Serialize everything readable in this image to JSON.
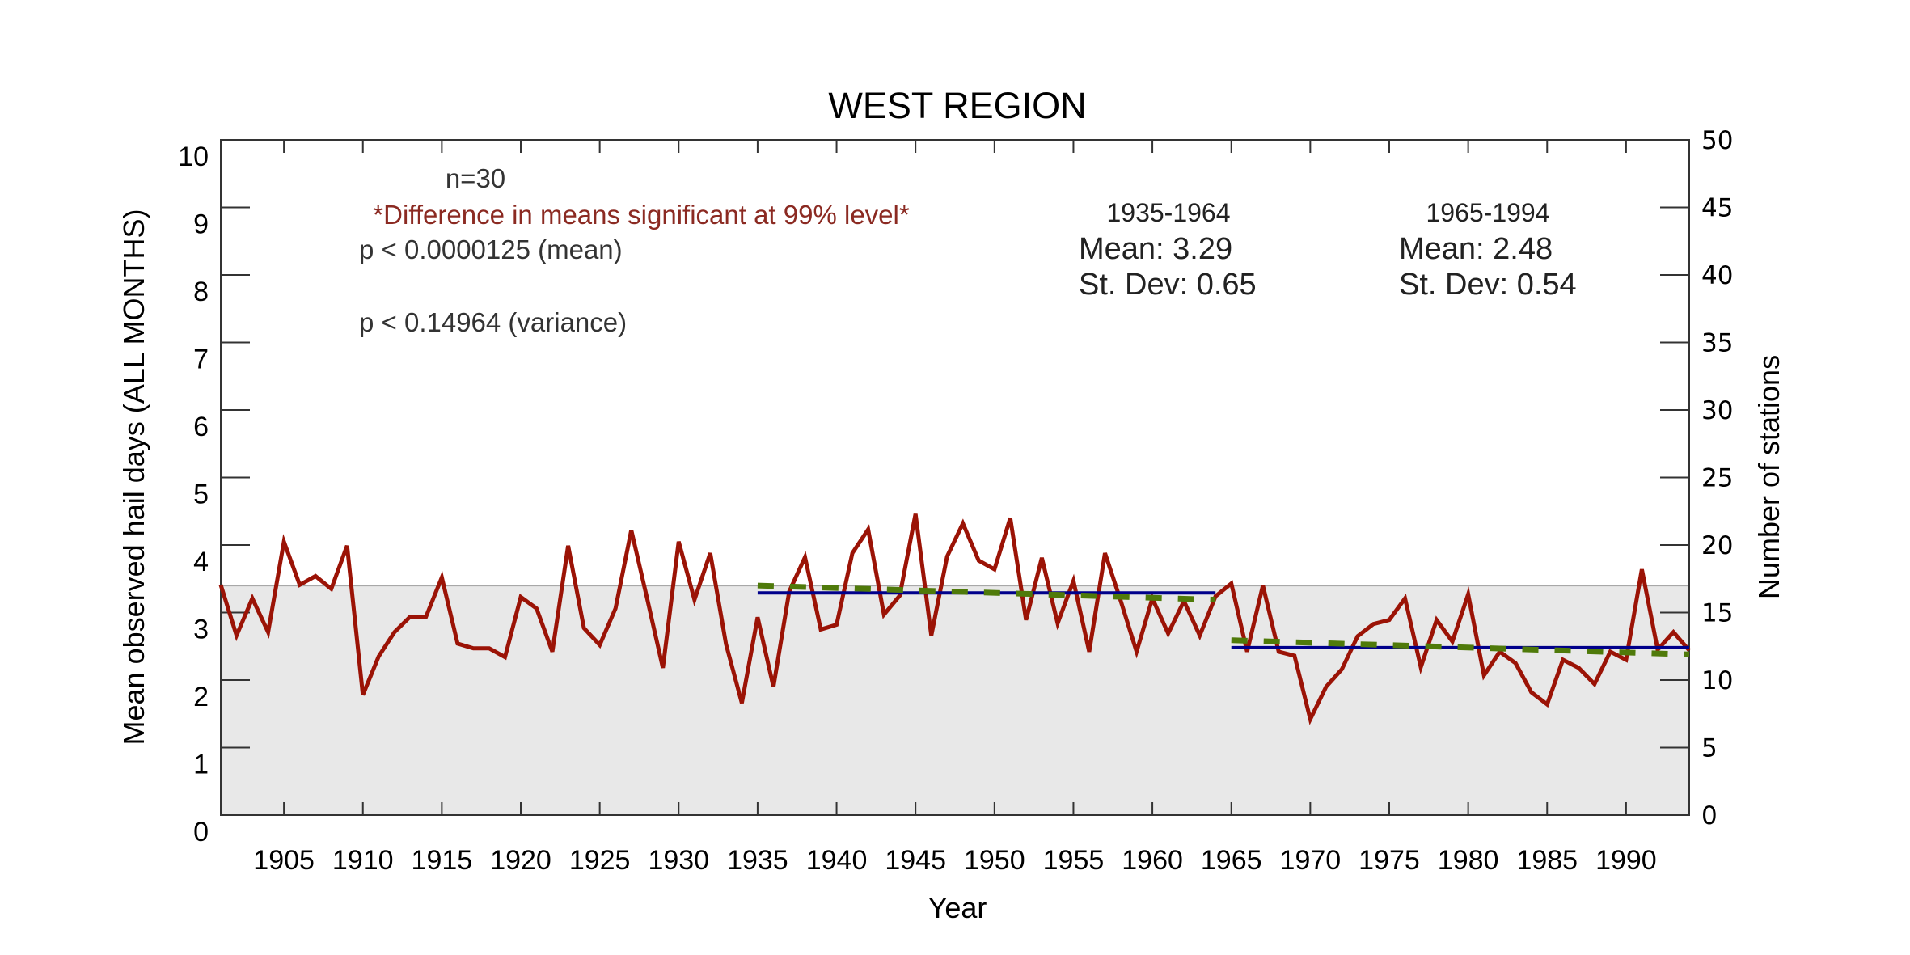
{
  "chart_data": {
    "type": "line",
    "title": "WEST REGION",
    "xlabel": "Year",
    "ylabel": "Mean observed hail days (ALL MONTHS)",
    "ylabel_right": "Number of stations",
    "xlim": [
      1901,
      1994
    ],
    "ylim": [
      0,
      10
    ],
    "ylim_right": [
      0,
      50
    ],
    "x_ticks": [
      1905,
      1910,
      1915,
      1920,
      1925,
      1930,
      1935,
      1940,
      1945,
      1950,
      1955,
      1960,
      1965,
      1970,
      1975,
      1980,
      1985,
      1990
    ],
    "y_ticks": [
      0,
      1,
      2,
      3,
      4,
      5,
      6,
      7,
      8,
      9,
      10
    ],
    "y_ticks_right": [
      0,
      5,
      10,
      15,
      20,
      25,
      30,
      35,
      40,
      45,
      50
    ],
    "grid": false,
    "colors": {
      "series": "#9b1306",
      "mean_line": "#00008b",
      "trend_line": "#4f7a0a",
      "stations_fill": "#e8e8e8",
      "stations_edge": "#a8a8a8",
      "significance_text": "#8b2a22"
    },
    "series": [
      {
        "name": "Mean observed hail days",
        "axis": "left",
        "x": [
          1901,
          1902,
          1903,
          1904,
          1905,
          1906,
          1907,
          1908,
          1909,
          1910,
          1911,
          1912,
          1913,
          1914,
          1915,
          1916,
          1917,
          1918,
          1919,
          1920,
          1921,
          1922,
          1923,
          1924,
          1925,
          1926,
          1927,
          1928,
          1929,
          1930,
          1931,
          1932,
          1933,
          1934,
          1935,
          1936,
          1937,
          1938,
          1939,
          1940,
          1941,
          1942,
          1943,
          1944,
          1945,
          1946,
          1947,
          1948,
          1949,
          1950,
          1951,
          1952,
          1953,
          1954,
          1955,
          1956,
          1957,
          1958,
          1959,
          1960,
          1961,
          1962,
          1963,
          1964,
          1965,
          1966,
          1967,
          1968,
          1969,
          1970,
          1971,
          1972,
          1973,
          1974,
          1975,
          1976,
          1977,
          1978,
          1979,
          1980,
          1981,
          1982,
          1983,
          1984,
          1985,
          1986,
          1987,
          1988,
          1989,
          1990,
          1991,
          1992,
          1993,
          1994
        ],
        "values": [
          3.41,
          2.66,
          3.21,
          2.71,
          4.05,
          3.41,
          3.54,
          3.35,
          3.99,
          1.78,
          2.35,
          2.71,
          2.94,
          2.94,
          3.52,
          2.54,
          2.47,
          2.47,
          2.34,
          3.23,
          3.06,
          2.42,
          3.99,
          2.77,
          2.52,
          3.06,
          4.22,
          3.21,
          2.18,
          4.05,
          3.19,
          3.88,
          2.53,
          1.66,
          2.93,
          1.9,
          3.31,
          3.82,
          2.75,
          2.82,
          3.88,
          4.23,
          2.97,
          3.25,
          4.46,
          2.66,
          3.83,
          4.32,
          3.77,
          3.64,
          4.4,
          2.89,
          3.81,
          2.84,
          3.47,
          2.42,
          3.88,
          3.17,
          2.42,
          3.21,
          2.69,
          3.17,
          2.66,
          3.24,
          3.43,
          2.42,
          3.4,
          2.42,
          2.36,
          1.42,
          1.9,
          2.16,
          2.65,
          2.83,
          2.89,
          3.21,
          2.19,
          2.89,
          2.57,
          3.27,
          2.07,
          2.42,
          2.25,
          1.82,
          1.64,
          2.3,
          2.18,
          1.94,
          2.42,
          2.3,
          3.64,
          2.45,
          2.71,
          2.44
        ]
      },
      {
        "name": "Number of stations",
        "axis": "right",
        "type": "area",
        "x": [
          1901,
          1994
        ],
        "values": [
          17,
          17
        ]
      },
      {
        "name": "Period mean 1935-1964",
        "axis": "left",
        "style": "solid",
        "x": [
          1935,
          1964
        ],
        "values": [
          3.29,
          3.29
        ]
      },
      {
        "name": "Period mean 1965-1994",
        "axis": "left",
        "style": "solid",
        "x": [
          1965,
          1994
        ],
        "values": [
          2.48,
          2.48
        ]
      },
      {
        "name": "Trend 1935-1964",
        "axis": "left",
        "style": "dashed",
        "x": [
          1935,
          1964
        ],
        "values": [
          3.4,
          3.19
        ]
      },
      {
        "name": "Trend 1965-1994",
        "axis": "left",
        "style": "dashed",
        "x": [
          1965,
          1994
        ],
        "values": [
          2.59,
          2.38
        ]
      }
    ],
    "annotations": {
      "n": "n=30",
      "significance": "*Difference in means significant at 99% level*",
      "p_mean": "p < 0.0000125 (mean)",
      "p_variance": "p < 0.14964 (variance)",
      "period1": {
        "label": "1935-1964",
        "mean": "Mean: 3.29",
        "stdev": "St. Dev: 0.65"
      },
      "period2": {
        "label": "1965-1994",
        "mean": "Mean: 2.48",
        "stdev": "St. Dev: 0.54"
      }
    }
  }
}
